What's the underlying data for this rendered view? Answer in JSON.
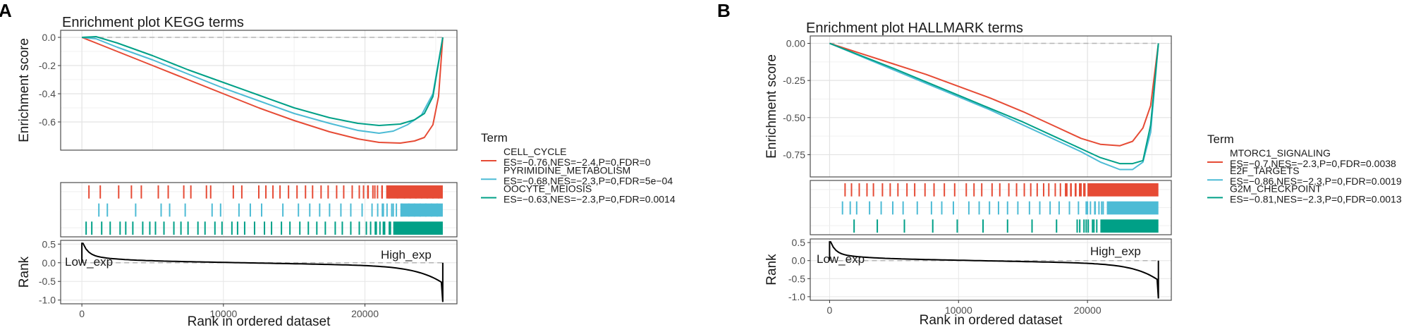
{
  "panels": [
    {
      "letter": "A",
      "title": "Enrichment plot KEGG terms",
      "legend_title": "Term",
      "ylabel_top": "Enrichment score",
      "ylabel_bottom": "Rank",
      "xlabel": "Rank in ordered dataset",
      "low_label": "Low_exp",
      "high_label": "High_exp"
    },
    {
      "letter": "B",
      "title": "Enrichment plot HALLMARK terms",
      "legend_title": "Term",
      "ylabel_top": "Enrichment score",
      "ylabel_bottom": "Rank",
      "xlabel": "Rank in ordered dataset",
      "low_label": "Low_exp",
      "high_label": "High_exp"
    }
  ],
  "chart_data": [
    {
      "type": "line",
      "title": "Enrichment plot KEGG terms",
      "xlabel": "Rank in ordered dataset",
      "ylabel": "Enrichment score",
      "xlim": [
        -1500,
        26500
      ],
      "ylim": [
        -0.8,
        0.05
      ],
      "xticks": [
        0,
        10000,
        20000
      ],
      "xtick_labels": [
        "0",
        "10000",
        "20000"
      ],
      "yticks": [
        0.0,
        -0.2,
        -0.4,
        -0.6
      ],
      "ytick_labels": [
        "0.0",
        "-0.2",
        "-0.4",
        "-0.6"
      ],
      "rank_ylim": [
        -1.1,
        0.6
      ],
      "rank_yticks": [
        0.5,
        0.0,
        -0.5,
        -1.0
      ],
      "rank_ytick_labels": [
        "0.5",
        "0.0",
        "-0.5",
        "-1.0"
      ],
      "series": [
        {
          "name": "CELL_CYCLE",
          "stats": "ES=−0.76,NES=−2.4,P=0,FDR=0",
          "color": "#E64B35",
          "x": [
            0,
            1000,
            2500,
            5000,
            7500,
            10000,
            12500,
            15000,
            17500,
            19500,
            21000,
            22500,
            23500,
            24200,
            24800,
            25200,
            25500
          ],
          "y": [
            0,
            -0.04,
            -0.1,
            -0.2,
            -0.3,
            -0.4,
            -0.5,
            -0.59,
            -0.67,
            -0.72,
            -0.745,
            -0.75,
            -0.735,
            -0.71,
            -0.62,
            -0.42,
            0
          ],
          "hits_x": [
            500,
            1300,
            2600,
            3500,
            4200,
            5400,
            6100,
            7200,
            7700,
            8800,
            9100,
            10700,
            11300,
            12500,
            13000,
            13500,
            14000,
            14600,
            15200,
            15800,
            16300,
            16900,
            17400,
            18000,
            18500,
            19100,
            19600,
            20200,
            20700,
            21200,
            21700,
            22300,
            22800,
            23200,
            23600,
            24000,
            24400,
            24800,
            25200
          ],
          "dense_from": 21500
        },
        {
          "name": "PYRIMIDINE_METABOLISM",
          "stats": "ES=−0.68,NES=−2.3,P=0,FDR=5e−04",
          "color": "#4DBBD5",
          "x": [
            0,
            1000,
            2500,
            5000,
            7500,
            10000,
            12500,
            15000,
            17500,
            19500,
            21000,
            22000,
            23000,
            24000,
            24800,
            25500
          ],
          "y": [
            0,
            -0.01,
            -0.07,
            -0.16,
            -0.26,
            -0.36,
            -0.45,
            -0.54,
            -0.61,
            -0.66,
            -0.68,
            -0.665,
            -0.62,
            -0.55,
            -0.4,
            0
          ],
          "hits_x": [
            1200,
            1800,
            3800,
            5600,
            6200,
            7300,
            9200,
            9800,
            11100,
            11900,
            12700,
            14200,
            15300,
            16100,
            16800,
            17500,
            18300,
            19000,
            19800,
            20500,
            21300,
            22000,
            22600,
            23100,
            23500,
            23900,
            24300,
            24700,
            25100
          ],
          "dense_from": 22500
        },
        {
          "name": "OOCYTE_MEIOSIS",
          "stats": "ES=−0.63,NES=−2.3,P=0,FDR=0.0014",
          "color": "#00A087",
          "x": [
            0,
            1000,
            2500,
            5000,
            7500,
            10000,
            12500,
            15000,
            17500,
            19500,
            21000,
            22500,
            23500,
            24200,
            24800,
            25500
          ],
          "y": [
            0,
            0.005,
            -0.04,
            -0.13,
            -0.23,
            -0.32,
            -0.41,
            -0.5,
            -0.57,
            -0.61,
            -0.625,
            -0.615,
            -0.585,
            -0.54,
            -0.42,
            0
          ],
          "hits_x": [
            300,
            700,
            1400,
            2000,
            2700,
            3100,
            3600,
            4300,
            4800,
            5200,
            5800,
            6500,
            7000,
            7500,
            8200,
            8700,
            9400,
            9900,
            10600,
            11000,
            11500,
            12200,
            12900,
            13400,
            14100,
            14700,
            15400,
            16000,
            16600,
            17200,
            17900,
            18400,
            19000,
            19600,
            20100,
            20800,
            21300,
            21800
          ],
          "dense_from": 22000
        }
      ]
    },
    {
      "type": "line",
      "title": "Enrichment plot HALLMARK terms",
      "xlabel": "Rank in ordered dataset",
      "ylabel": "Enrichment score",
      "xlim": [
        -1500,
        26500
      ],
      "ylim": [
        -0.9,
        0.05
      ],
      "xticks": [
        0,
        10000,
        20000
      ],
      "xtick_labels": [
        "0",
        "10000",
        "20000"
      ],
      "yticks": [
        0.0,
        -0.25,
        -0.5,
        -0.75
      ],
      "ytick_labels": [
        "0.00",
        "-0.25",
        "-0.50",
        "-0.75"
      ],
      "rank_ylim": [
        -1.1,
        0.6
      ],
      "rank_yticks": [
        0.5,
        0.0,
        -0.5,
        -1.0
      ],
      "rank_ytick_labels": [
        "0.5",
        "0.0",
        "-0.5",
        "-1.0"
      ],
      "series": [
        {
          "name": "MTORC1_SIGNALING",
          "stats": "ES=−0.7,NES=−2.3,P=0,FDR=0.0038",
          "color": "#E64B35",
          "x": [
            0,
            2500,
            5000,
            7500,
            10000,
            12500,
            15000,
            17500,
            19500,
            21000,
            22500,
            23500,
            24300,
            24900,
            25500
          ],
          "y": [
            0,
            -0.07,
            -0.14,
            -0.21,
            -0.29,
            -0.37,
            -0.46,
            -0.56,
            -0.64,
            -0.68,
            -0.69,
            -0.66,
            -0.57,
            -0.42,
            0
          ],
          "hits_x": [
            1200,
            1700,
            2300,
            2900,
            3400,
            4100,
            4700,
            5300,
            6000,
            6600,
            7400,
            8100,
            8900,
            9700,
            10600,
            11200,
            11800,
            12600,
            13200,
            13900,
            14500,
            15100,
            15600,
            16100,
            16600,
            17000,
            17500,
            17900,
            18300,
            18700,
            19100,
            19500,
            19800
          ],
          "dense_from": 20000
        },
        {
          "name": "E2F_TARGETS",
          "stats": "ES=−0.86,NES=−2.3,P=0,FDR=0.0019",
          "color": "#4DBBD5",
          "x": [
            0,
            2500,
            5000,
            7500,
            10000,
            12500,
            15000,
            17500,
            19500,
            21000,
            22500,
            23500,
            24300,
            24900,
            25500
          ],
          "y": [
            0,
            -0.09,
            -0.18,
            -0.27,
            -0.36,
            -0.45,
            -0.55,
            -0.65,
            -0.73,
            -0.8,
            -0.85,
            -0.85,
            -0.8,
            -0.6,
            0
          ],
          "hits_x": [
            1000,
            1600,
            2100,
            3100,
            4000,
            4900,
            5700,
            6800,
            7900,
            8700,
            9600,
            10800,
            11600,
            12400,
            13100,
            13800,
            14600,
            15500,
            16300,
            17100,
            17800,
            18600,
            19300,
            20000,
            20600,
            21100
          ],
          "dense_from": 21500
        },
        {
          "name": "G2M_CHECKPOINT",
          "stats": "ES=−0.81,NES=−2.3,P=0,FDR=0.0013",
          "color": "#00A087",
          "x": [
            0,
            2500,
            5000,
            7500,
            10000,
            12500,
            15000,
            17500,
            19500,
            21000,
            22500,
            23500,
            24300,
            24900,
            25500
          ],
          "y": [
            0,
            -0.085,
            -0.17,
            -0.26,
            -0.35,
            -0.44,
            -0.53,
            -0.63,
            -0.71,
            -0.77,
            -0.81,
            -0.81,
            -0.79,
            -0.55,
            0
          ],
          "hits_x": [
            1900,
            3700,
            5800,
            8000,
            9900,
            11900,
            13800,
            15700,
            17600,
            19200,
            19900,
            20500
          ],
          "dense_from": 21000
        }
      ]
    }
  ]
}
